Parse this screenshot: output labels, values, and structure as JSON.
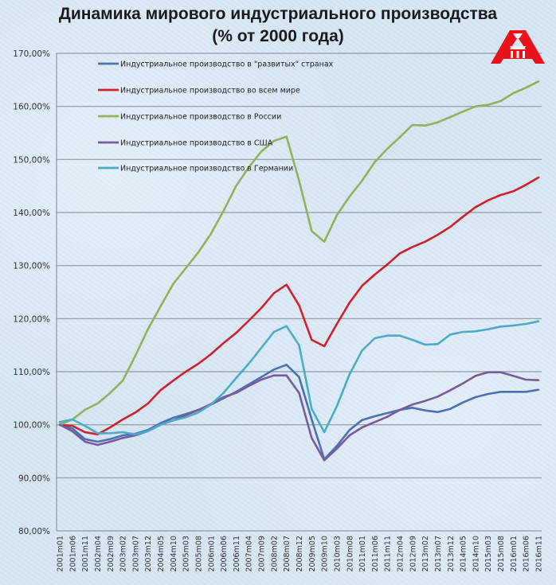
{
  "chart_data": {
    "type": "line",
    "title": "Динамика мирового индустриального производства",
    "subtitle": "(% от 2000 года)",
    "xlabel": "",
    "ylabel": "",
    "ylim": [
      80,
      170
    ],
    "yticks": [
      "80,00%",
      "90,00%",
      "100,00%",
      "110,00%",
      "120,00%",
      "130,00%",
      "140,00%",
      "150,00%",
      "160,00%",
      "170,00%"
    ],
    "ytick_values": [
      80,
      90,
      100,
      110,
      120,
      130,
      140,
      150,
      160,
      170
    ],
    "grid": true,
    "legend_position": "top-left",
    "categories": [
      "2001m01",
      "2001m06",
      "2001m11",
      "2002m04",
      "2002m09",
      "2003m02",
      "2003m07",
      "2003m12",
      "2004m05",
      "2004m10",
      "2005m03",
      "2005m08",
      "2006m01",
      "2006m06",
      "2006m11",
      "2007m04",
      "2007m09",
      "2008m02",
      "2008m07",
      "2008m12",
      "2009m05",
      "2009m10",
      "2010m03",
      "2010m08",
      "2011m01",
      "2011m06",
      "2011m11",
      "2012m04",
      "2012m09",
      "2013m02",
      "2013m07",
      "2013m12",
      "2014m05",
      "2014m10",
      "2015m03",
      "2015m08",
      "2016m01",
      "2016m06",
      "2016m11"
    ],
    "series": [
      {
        "name": "Индустриальное производство в \"развитых\" странах",
        "color": "#4a72b0",
        "values": [
          100.0,
          99.3,
          97.3,
          96.8,
          97.3,
          98.0,
          98.3,
          99.0,
          100.3,
          101.3,
          102.0,
          102.8,
          103.8,
          105.0,
          106.2,
          107.6,
          109.0,
          110.4,
          111.3,
          109.0,
          101.0,
          93.5,
          96.0,
          99.0,
          100.9,
          101.6,
          102.2,
          102.8,
          103.2,
          102.7,
          102.4,
          103.0,
          104.2,
          105.2,
          105.8,
          106.2,
          106.2,
          106.2,
          106.6
        ]
      },
      {
        "name": "Индустриальное производство во всем мире",
        "color": "#d0202a",
        "values": [
          100.0,
          99.8,
          98.6,
          98.2,
          99.5,
          101.0,
          102.3,
          104.0,
          106.5,
          108.3,
          110.0,
          111.5,
          113.3,
          115.4,
          117.3,
          119.6,
          122.0,
          124.8,
          126.4,
          122.5,
          116.0,
          114.8,
          119.0,
          123.0,
          126.2,
          128.3,
          130.2,
          132.3,
          133.5,
          134.5,
          135.8,
          137.3,
          139.2,
          141.0,
          142.3,
          143.3,
          144.0,
          145.2,
          146.6
        ]
      },
      {
        "name": "Индустриальное производство в России",
        "color": "#8fb35a",
        "values": [
          100.0,
          101.0,
          102.8,
          104.0,
          106.0,
          108.3,
          113.0,
          118.0,
          122.3,
          126.5,
          129.5,
          132.5,
          136.0,
          140.3,
          145.0,
          148.5,
          151.5,
          153.5,
          154.3,
          146.0,
          136.5,
          134.5,
          139.5,
          143.0,
          146.0,
          149.5,
          152.0,
          154.2,
          156.5,
          156.4,
          157.0,
          158.0,
          159.0,
          160.0,
          160.3,
          161.0,
          162.5,
          163.5,
          164.7
        ]
      },
      {
        "name": "Индустриальное производство в США",
        "color": "#7a5a9e",
        "values": [
          100.0,
          98.8,
          96.8,
          96.2,
          96.8,
          97.5,
          98.0,
          98.8,
          100.0,
          100.8,
          101.8,
          102.8,
          103.9,
          105.2,
          106.0,
          107.3,
          108.5,
          109.3,
          109.3,
          106.0,
          97.5,
          93.3,
          95.5,
          98.0,
          99.5,
          100.5,
          101.5,
          102.8,
          103.8,
          104.5,
          105.3,
          106.5,
          107.8,
          109.2,
          109.9,
          109.9,
          109.2,
          108.5,
          108.4
        ]
      },
      {
        "name": "Индустриальное производство в Германии",
        "color": "#4aacc6",
        "values": [
          100.5,
          101.0,
          99.8,
          98.4,
          98.4,
          98.6,
          98.2,
          98.8,
          100.0,
          100.8,
          101.4,
          102.3,
          103.8,
          106.0,
          108.8,
          111.5,
          114.5,
          117.5,
          118.6,
          115.0,
          103.0,
          98.6,
          103.5,
          109.5,
          114.0,
          116.3,
          116.8,
          116.8,
          116.0,
          115.1,
          115.2,
          117.0,
          117.5,
          117.6,
          118.0,
          118.5,
          118.7,
          119.0,
          119.5
        ]
      }
    ]
  },
  "logo": {
    "name": "red-triangle-logo",
    "color": "#e8131b"
  },
  "colors": {
    "background": "#d6e5f3",
    "grid": "#8e979f"
  }
}
